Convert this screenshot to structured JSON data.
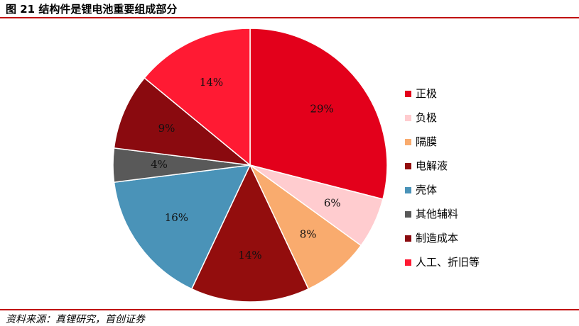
{
  "figure": {
    "title": "图 21  结构件是锂电池重要组成部分",
    "source": "资料来源：真锂研究，首创证券"
  },
  "chart_data": {
    "type": "pie",
    "labels": [
      "正极",
      "负极",
      "隔膜",
      "电解液",
      "壳体",
      "其他辅料",
      "制造成本",
      "人工、折旧等"
    ],
    "values": [
      29,
      6,
      8,
      14,
      16,
      4,
      9,
      14
    ],
    "data_labels": [
      "29%",
      "6%",
      "8%",
      "14%",
      "16%",
      "4%",
      "9%",
      "14%"
    ],
    "colors": [
      "#e3001b",
      "#ffcccf",
      "#f9ab6e",
      "#930d0d",
      "#4a93b8",
      "#595959",
      "#8a0a0f",
      "#ff1a33"
    ],
    "legend_position": "right",
    "start_angle": "12 o'clock, clockwise"
  }
}
